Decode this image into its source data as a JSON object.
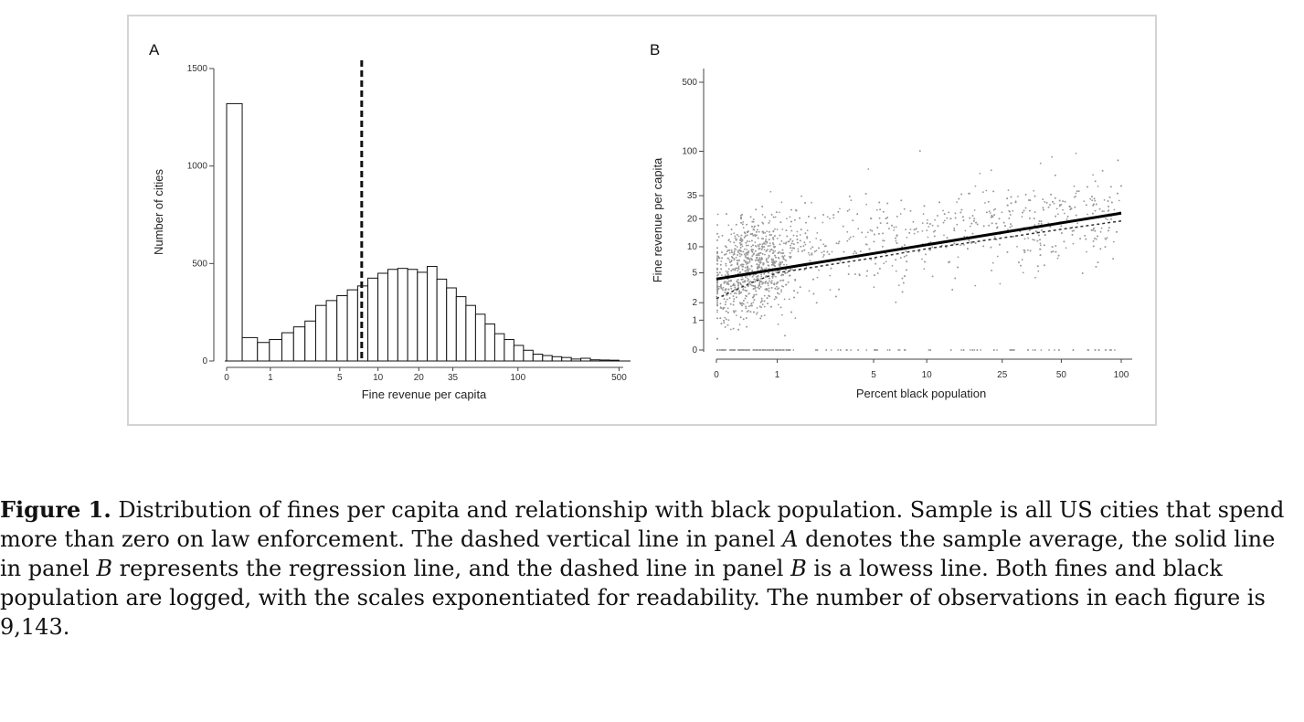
{
  "caption": {
    "label": "Figure 1.",
    "text": " Distribution of fines per capita and relationship with black population. Sample is all US cities that spend more than zero on law enforcement. The dashed vertical line in panel A denotes the sample average, the solid line in panel B represents the regression line, and the dashed line in panel B is a lowess line. Both fines and black population are logged, with the scales exponentiated for readability. The number of observations in each figure is 9,143."
  },
  "chart_data": [
    {
      "type": "bar",
      "panel": "A",
      "xlabel": "Fine revenue per capita",
      "ylabel": "Number of cities",
      "x_scale": "log(1+x)",
      "x_ticks": [
        0,
        1,
        5,
        10,
        20,
        35,
        100,
        500
      ],
      "y_ticks": [
        0,
        500,
        1000,
        1500
      ],
      "ylim": [
        0,
        1500
      ],
      "sample_average": 7.5,
      "bin_edges": [
        0,
        0.28,
        0.63,
        0.97,
        1.4,
        1.89,
        2.46,
        3.1,
        3.85,
        4.74,
        5.77,
        6.97,
        8.37,
        9.99,
        11.87,
        14.06,
        16.6,
        19.55,
        22.99,
        26.98,
        31.62,
        37.02,
        43.3,
        50.6,
        59.09,
        68.95,
        80.42,
        93.76,
        109.27,
        127.3,
        148.29,
        172.7,
        201.1,
        234.1,
        272.5,
        317.2,
        369.1,
        429.5,
        499.7
      ],
      "values": [
        1320,
        120,
        95,
        110,
        145,
        175,
        205,
        285,
        310,
        335,
        365,
        385,
        425,
        450,
        470,
        475,
        470,
        455,
        485,
        420,
        375,
        330,
        285,
        240,
        190,
        140,
        110,
        80,
        55,
        35,
        28,
        22,
        18,
        10,
        14,
        6,
        5,
        4
      ]
    },
    {
      "type": "scatter",
      "panel": "B",
      "xlabel": "Percent black population",
      "ylabel": "Fine revenue per capita",
      "x_scale": "log(1+x)",
      "y_scale": "log(1+y)",
      "x_ticks": [
        0,
        1,
        5,
        10,
        25,
        50,
        100
      ],
      "y_ticks": [
        0,
        1,
        2,
        5,
        10,
        20,
        35,
        100,
        500
      ],
      "n_points_shown": 3200,
      "regression_line": {
        "x": [
          0,
          100
        ],
        "y": [
          4.2,
          23
        ]
      },
      "lowess_line": {
        "x": [
          0,
          0.5,
          1,
          5,
          10,
          25,
          50,
          100
        ],
        "y": [
          2.3,
          3.8,
          5.0,
          7.5,
          9.5,
          12.5,
          15.5,
          19
        ]
      }
    }
  ]
}
